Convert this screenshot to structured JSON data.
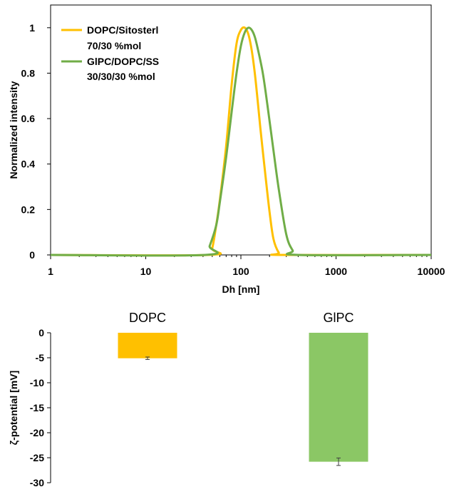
{
  "chart_data": [
    {
      "type": "line",
      "xlabel": "Dh [nm]",
      "ylabel": "Normalized intensity",
      "xscale": "log",
      "xlim": [
        1,
        10000
      ],
      "ylim": [
        0,
        1.1
      ],
      "x_ticks": [
        "1",
        "10",
        "100",
        "1000",
        "10000"
      ],
      "y_ticks": [
        "0",
        "0.2",
        "0.4",
        "0.6",
        "0.8",
        "1"
      ],
      "grid": false,
      "legend": "top-left",
      "series": [
        {
          "name_lines": [
            "DOPC/Sitosterl",
            "70/30 %mol"
          ],
          "color": "#FFC000",
          "x": [
            1,
            45,
            50,
            55,
            60,
            70,
            80,
            90,
            100,
            110,
            120,
            130,
            140,
            150,
            160,
            180,
            200,
            220,
            250,
            280,
            10000
          ],
          "y": [
            0,
            0,
            0.03,
            0.13,
            0.24,
            0.48,
            0.75,
            0.93,
            0.99,
            1.0,
            0.97,
            0.9,
            0.8,
            0.68,
            0.56,
            0.36,
            0.19,
            0.07,
            0.01,
            0,
            0
          ]
        },
        {
          "name_lines": [
            "GlPC/DOPC/SS",
            "30/30/30 %mol"
          ],
          "color": "#70AD47",
          "x": [
            1,
            42,
            47,
            55,
            60,
            70,
            80,
            90,
            100,
            110,
            120,
            130,
            140,
            150,
            170,
            190,
            220,
            250,
            300,
            350,
            400,
            10000
          ],
          "y": [
            0,
            0,
            0.04,
            0.13,
            0.23,
            0.43,
            0.63,
            0.8,
            0.92,
            0.98,
            1.0,
            0.99,
            0.96,
            0.91,
            0.8,
            0.66,
            0.46,
            0.29,
            0.09,
            0.02,
            0,
            0
          ]
        }
      ]
    },
    {
      "type": "bar",
      "categories": [
        "DOPC",
        "GlPC"
      ],
      "ylabel": "ζ-potential [mV]",
      "ylim": [
        -30,
        0
      ],
      "y_ticks": [
        "0",
        "-5",
        "-10",
        "-15",
        "-20",
        "-25",
        "-30"
      ],
      "values": [
        -5.1,
        -25.8
      ],
      "errors": [
        0.25,
        0.75
      ],
      "colors": [
        "#FFC000",
        "#8BC765"
      ],
      "grid": false
    }
  ]
}
